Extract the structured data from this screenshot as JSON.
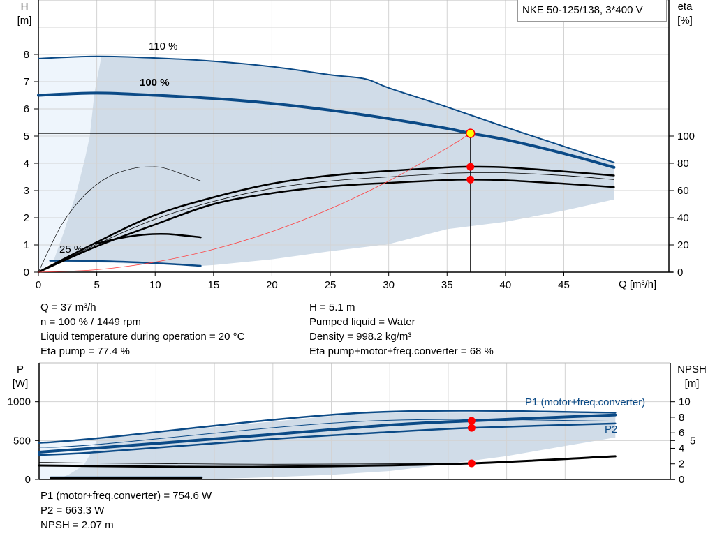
{
  "legend": {
    "title": "NKE 50-125/138, 3*400 V"
  },
  "top_axes": {
    "y_left_label": "H",
    "y_left_unit": "[m]",
    "y_right_label": "eta",
    "y_right_unit": "[%]",
    "x_label": "Q [m³/h]"
  },
  "bottom_axes": {
    "y_left_label": "P",
    "y_left_unit": "[W]",
    "y_right_label": "NPSH",
    "y_right_unit": "[m]"
  },
  "info_left": [
    "Q = 37 m³/h",
    "n = 100 % / 1449 rpm",
    "Liquid temperature during operation = 20 °C",
    "Eta pump = 77.4 %"
  ],
  "info_right": [
    "H = 5.1 m",
    "Pumped liquid = Water",
    "Density = 998.2 kg/m³",
    "Eta pump+motor+freq.converter = 68 %"
  ],
  "info_bottom": [
    "P1 (motor+freq.converter) = 754.6 W",
    "P2 = 663.3 W",
    "NPSH = 2.07 m"
  ],
  "colors": {
    "curve_blue": "#0b4a86",
    "range_fill": "#d0dce8",
    "light_fill": "#eef5fc",
    "grid": "#d3d3d3",
    "duty_point": "#ffff00",
    "marker": "#ff0000",
    "system_curve": "#ff4040"
  },
  "chart_data": [
    {
      "type": "line",
      "title": "",
      "xlabel": "Q [m³/h]",
      "ylabel": "H [m]",
      "y2label": "eta [%]",
      "xlim": [
        0,
        54
      ],
      "ylim": [
        0,
        10
      ],
      "y2lim": [
        0,
        200
      ],
      "x_ticks": [
        0,
        5,
        10,
        15,
        20,
        25,
        30,
        35,
        40,
        45
      ],
      "y_ticks": [
        0,
        1,
        2,
        3,
        4,
        5,
        6,
        7,
        8
      ],
      "y2_ticks": [
        0,
        20,
        40,
        60,
        80,
        100
      ],
      "grid": true,
      "regions": {
        "operating_range": [
          [
            5.4,
            7.93
          ],
          [
            10,
            7.87
          ],
          [
            15,
            7.75
          ],
          [
            20,
            7.55
          ],
          [
            25,
            7.25
          ],
          [
            28,
            7.1
          ],
          [
            30,
            6.77
          ],
          [
            35,
            6.07
          ],
          [
            40,
            5.33
          ],
          [
            45,
            4.62
          ],
          [
            49.3,
            4.03
          ],
          [
            49.3,
            2.67
          ],
          [
            45,
            2.26
          ],
          [
            40,
            1.85
          ],
          [
            35,
            1.58
          ],
          [
            30,
            1.03
          ],
          [
            25,
            0.77
          ],
          [
            20,
            0.47
          ],
          [
            15,
            0.26
          ],
          [
            13.9,
            0.23
          ],
          [
            7,
            0.33
          ],
          [
            1.3,
            0.42
          ],
          [
            2.2,
            1.5
          ],
          [
            3.3,
            3
          ],
          [
            4.0,
            4.2
          ],
          [
            4.4,
            5
          ],
          [
            4.8,
            6.6
          ]
        ],
        "extended_range": [
          [
            0,
            0
          ],
          [
            0,
            7.85
          ],
          [
            5.4,
            7.93
          ],
          [
            4.8,
            6.6
          ],
          [
            4.4,
            5
          ],
          [
            4.0,
            4.2
          ],
          [
            3.3,
            3
          ],
          [
            2.2,
            1.5
          ],
          [
            1.3,
            0.42
          ]
        ]
      },
      "series": [
        {
          "name": "110 %",
          "axis": "H",
          "color": "#0b4a86",
          "points": [
            [
              0,
              7.85
            ],
            [
              5,
              7.93
            ],
            [
              10,
              7.87
            ],
            [
              15,
              7.75
            ],
            [
              20,
              7.55
            ],
            [
              25,
              7.25
            ],
            [
              28,
              7.1
            ],
            [
              30,
              6.77
            ],
            [
              35,
              6.07
            ],
            [
              40,
              5.33
            ],
            [
              45,
              4.62
            ],
            [
              49.3,
              4.03
            ]
          ]
        },
        {
          "name": "100 %",
          "axis": "H",
          "color": "#0b4a86",
          "points": [
            [
              0,
              6.5
            ],
            [
              5,
              6.58
            ],
            [
              10,
              6.5
            ],
            [
              15,
              6.38
            ],
            [
              20,
              6.2
            ],
            [
              25,
              5.95
            ],
            [
              30,
              5.64
            ],
            [
              35,
              5.28
            ],
            [
              37,
              5.1
            ],
            [
              40,
              4.87
            ],
            [
              45,
              4.36
            ],
            [
              49.3,
              3.85
            ]
          ]
        },
        {
          "name": "25 %",
          "axis": "H",
          "color": "#0b4a86",
          "points": [
            [
              1,
              0.42
            ],
            [
              5,
              0.41
            ],
            [
              10,
              0.33
            ],
            [
              13.9,
              0.23
            ]
          ]
        },
        {
          "axis": "eta",
          "color": "#000000",
          "points": [
            [
              0,
              0
            ],
            [
              5,
              22
            ],
            [
              10,
              42
            ],
            [
              15,
              55
            ],
            [
              20,
              65
            ],
            [
              25,
              71
            ],
            [
              30,
              74.4
            ],
            [
              35,
              77
            ],
            [
              37,
              77.4
            ],
            [
              40,
              77
            ],
            [
              45,
              74
            ],
            [
              49.3,
              71
            ]
          ]
        },
        {
          "axis": "eta",
          "color": "#000000",
          "points": [
            [
              0,
              0
            ],
            [
              5,
              20.5
            ],
            [
              10,
              39
            ],
            [
              15,
              52
            ],
            [
              20,
              61.5
            ],
            [
              25,
              67
            ],
            [
              30,
              70
            ],
            [
              35,
              72.5
            ],
            [
              37,
              73
            ],
            [
              40,
              73
            ],
            [
              45,
              71
            ],
            [
              49.3,
              68
            ]
          ]
        },
        {
          "axis": "eta",
          "color": "#000000",
          "points": [
            [
              0,
              0
            ],
            [
              5,
              19
            ],
            [
              10,
              35
            ],
            [
              15,
              50
            ],
            [
              20,
              58
            ],
            [
              25,
              63
            ],
            [
              30,
              65.6
            ],
            [
              35,
              67.7
            ],
            [
              37,
              68
            ],
            [
              40,
              67.5
            ],
            [
              45,
              65
            ],
            [
              49.3,
              62.5
            ]
          ]
        },
        {
          "axis": "eta",
          "color": "#000000",
          "points": [
            [
              0,
              0
            ],
            [
              2,
              35
            ],
            [
              4,
              57
            ],
            [
              6,
              70
            ],
            [
              8,
              76
            ],
            [
              9.6,
              77.4
            ],
            [
              11,
              76
            ],
            [
              13.9,
              67
            ]
          ]
        },
        {
          "axis": "eta",
          "color": "#000000",
          "points": [
            [
              5,
              21
            ],
            [
              7,
              25
            ],
            [
              9,
              27.5
            ],
            [
              11,
              28
            ],
            [
              13.9,
              25.6
            ]
          ]
        },
        {
          "axis": "H",
          "color": "#ff4040",
          "points": [
            [
              0,
              0
            ],
            [
              5,
              0.09
            ],
            [
              10,
              0.37
            ],
            [
              15,
              0.84
            ],
            [
              20,
              1.49
            ],
            [
              25,
              2.33
            ],
            [
              30,
              3.35
            ],
            [
              35,
              4.56
            ],
            [
              37,
              5.1
            ]
          ]
        }
      ],
      "duty_point": {
        "Q": 37,
        "H": 5.1
      },
      "markers_eta": [
        77.4,
        68
      ]
    },
    {
      "type": "line",
      "title": "",
      "ylabel": "P [W]",
      "y2label": "NPSH [m]",
      "xlim": [
        0,
        54
      ],
      "ylim": [
        0,
        1500
      ],
      "y2lim": [
        0,
        15
      ],
      "x_ticks": [
        0,
        5,
        10,
        15,
        20,
        25,
        30,
        35,
        40,
        45
      ],
      "y_ticks": [
        0,
        500,
        1000
      ],
      "y2_ticks": [
        0,
        2,
        4,
        5,
        6,
        8,
        10
      ],
      "grid": true,
      "regions": {
        "operating_range": [
          [
            5,
            530
          ],
          [
            28,
            860
          ],
          [
            49.3,
            860
          ],
          [
            49.3,
            540
          ],
          [
            45,
            430
          ],
          [
            40,
            300
          ],
          [
            35,
            200
          ],
          [
            30,
            108
          ],
          [
            25,
            60
          ],
          [
            20,
            30
          ],
          [
            13.9,
            0
          ],
          [
            1.5,
            0
          ],
          [
            2.5,
            60
          ],
          [
            3.8,
            180
          ],
          [
            4.6,
            380
          ]
        ],
        "extended_range": [
          [
            0,
            0
          ],
          [
            0,
            470
          ],
          [
            5,
            530
          ],
          [
            4.6,
            380
          ],
          [
            3.8,
            180
          ],
          [
            2.5,
            60
          ],
          [
            1.5,
            0
          ]
        ]
      },
      "series": [
        {
          "axis": "P",
          "color": "#0b4a86",
          "points": [
            [
              0,
              470
            ],
            [
              5,
              530
            ],
            [
              28,
              860
            ],
            [
              49.3,
              860
            ]
          ]
        },
        {
          "axis": "P",
          "color": "#0b4a86",
          "points": [
            [
              0,
              414
            ],
            [
              5,
              450
            ],
            [
              28,
              750
            ],
            [
              49.3,
              750
            ]
          ]
        },
        {
          "name": "P1 (motor+freq.converter)",
          "axis": "P",
          "color": "#0b4a86",
          "points": [
            [
              0,
              350
            ],
            [
              5,
              405
            ],
            [
              20,
              580
            ],
            [
              30,
              700
            ],
            [
              37,
              754.6
            ],
            [
              49.3,
              830
            ]
          ]
        },
        {
          "name": "P2",
          "axis": "P",
          "color": "#0b4a86",
          "points": [
            [
              0,
              315
            ],
            [
              5,
              350
            ],
            [
              20,
              520
            ],
            [
              30,
              610
            ],
            [
              37,
              663.3
            ],
            [
              49.3,
              720
            ]
          ]
        },
        {
          "axis": "P",
          "color": "#0b4a86",
          "points": [
            [
              1,
              25
            ],
            [
              13.9,
              25
            ]
          ]
        },
        {
          "axis": "NPSH",
          "color": "#000000",
          "points": [
            [
              0,
              2.2
            ],
            [
              5,
              2.1
            ],
            [
              20,
              1.95
            ],
            [
              37,
              2.07
            ]
          ]
        },
        {
          "axis": "NPSH",
          "color": "#000000",
          "points": [
            [
              0,
              1.8
            ],
            [
              5,
              1.72
            ],
            [
              15,
              1.6
            ],
            [
              25,
              1.7
            ],
            [
              37,
              2.07
            ],
            [
              49.3,
              2.97
            ]
          ]
        },
        {
          "axis": "NPSH",
          "color": "#000000",
          "points": [
            [
              1,
              0.15
            ],
            [
              13.9,
              0.2
            ]
          ]
        }
      ],
      "markers_P": [
        754.6,
        663.3
      ],
      "markers_NPSH": [
        2.07
      ]
    }
  ]
}
